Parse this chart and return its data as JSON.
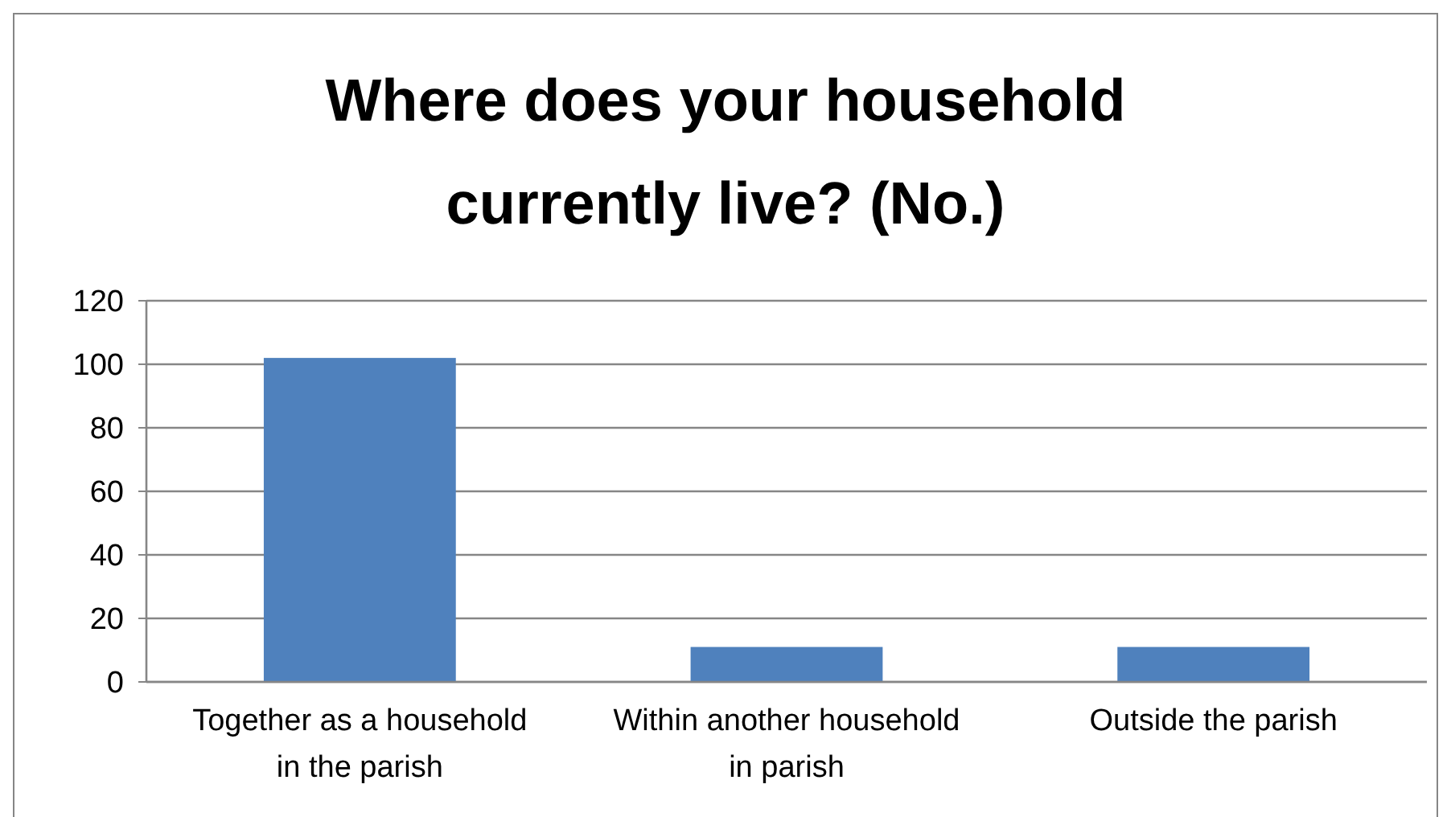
{
  "chart_data": {
    "type": "bar",
    "title": "Where does your household currently live? (No.)",
    "categories": [
      "Together as a household in the parish",
      "Within another household in parish",
      "Outside the parish"
    ],
    "values": [
      102,
      11,
      11
    ],
    "color": "#4f81bd",
    "ylim": [
      0,
      120
    ],
    "yticks": [
      0,
      20,
      40,
      60,
      80,
      100,
      120
    ],
    "grid": "y"
  }
}
